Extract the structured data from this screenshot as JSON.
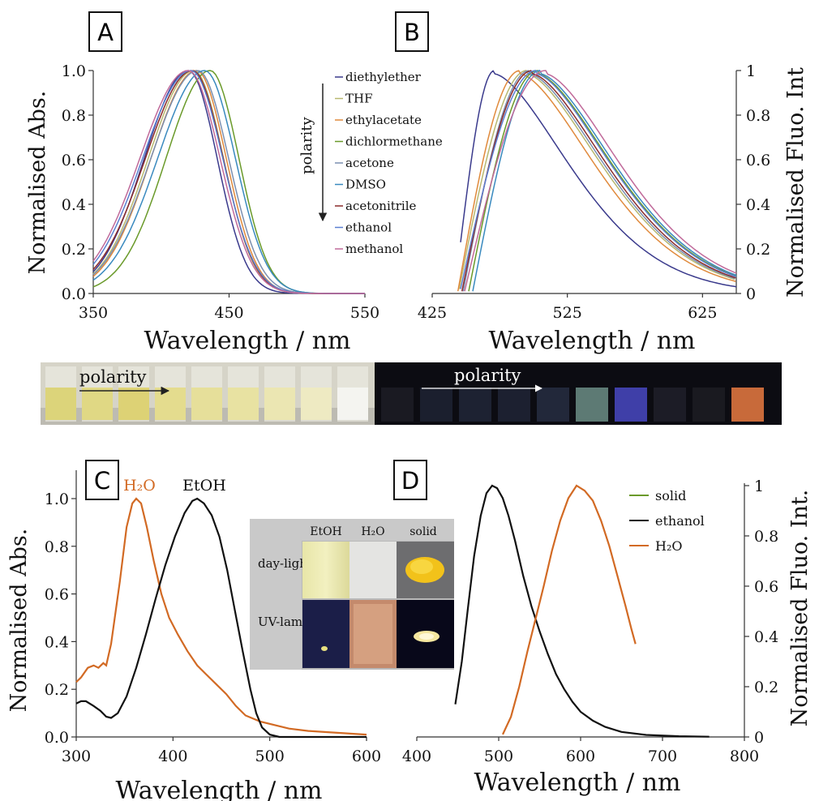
{
  "chart_data": [
    {
      "panel": "A",
      "type": "line",
      "xlabel": "Wavelength / nm",
      "ylabel": "Normalised Abs.",
      "xlim": [
        350,
        550
      ],
      "ylim": [
        0,
        1
      ],
      "xticks": [
        "350",
        "450",
        "550"
      ],
      "yticks": [
        "0.0",
        "0.2",
        "0.4",
        "0.6",
        "0.8",
        "1.0"
      ],
      "arrow_label": "polarity",
      "legend": "top-right",
      "series": [
        {
          "name": "diethylether",
          "color": "#3a3a8c",
          "peak": 420,
          "width": 30,
          "min_x": 350
        },
        {
          "name": "THF",
          "color": "#b8b870",
          "peak": 424,
          "width": 31,
          "min_x": 350
        },
        {
          "name": "ethylacetate",
          "color": "#e08a3c",
          "peak": 426,
          "width": 31,
          "min_x": 350
        },
        {
          "name": "dichlormethane",
          "color": "#6a9a2a",
          "peak": 436,
          "width": 30,
          "min_x": 350
        },
        {
          "name": "acetone",
          "color": "#7a8fb0",
          "peak": 427,
          "width": 32,
          "min_x": 350
        },
        {
          "name": "DMSO",
          "color": "#3a8abf",
          "peak": 432,
          "width": 32,
          "min_x": 350
        },
        {
          "name": "acetonitrile",
          "color": "#8b2b2b",
          "peak": 423,
          "width": 32,
          "min_x": 350
        },
        {
          "name": "ethanol",
          "color": "#5b7fd0",
          "peak": 422,
          "width": 33,
          "min_x": 350
        },
        {
          "name": "methanol",
          "color": "#c06a9a",
          "peak": 420,
          "width": 33,
          "min_x": 350
        }
      ]
    },
    {
      "panel": "B",
      "type": "line",
      "xlabel": "Wavelength / nm",
      "ylabel": "Normalised Fluo. Int",
      "xlim": [
        425,
        650
      ],
      "ylim": [
        0,
        1
      ],
      "xticks": [
        "425",
        "525",
        "625"
      ],
      "yticks": [
        "0",
        "0.2",
        "0.4",
        "0.6",
        "0.8",
        "1"
      ],
      "series": [
        {
          "name": "diethylether",
          "color": "#3a3a8c",
          "peak": 471,
          "start": 446,
          "start_y": 0.23
        },
        {
          "name": "THF",
          "color": "#b8b870",
          "peak": 495,
          "start": 445,
          "start_y": 0.02
        },
        {
          "name": "ethylacetate",
          "color": "#e08a3c",
          "peak": 490,
          "start": 444,
          "start_y": 0.01
        },
        {
          "name": "dichlormethane",
          "color": "#6a9a2a",
          "peak": 503,
          "start": 452,
          "start_y": 0.01
        },
        {
          "name": "acetone",
          "color": "#7a8fb0",
          "peak": 497,
          "start": 448,
          "start_y": 0.01
        },
        {
          "name": "DMSO",
          "color": "#3a8abf",
          "peak": 505,
          "start": 455,
          "start_y": 0.01
        },
        {
          "name": "acetonitrile",
          "color": "#8b2b2b",
          "peak": 499,
          "start": 447,
          "start_y": 0.01
        },
        {
          "name": "ethanol",
          "color": "#5b7fd0",
          "peak": 502,
          "start": 446,
          "start_y": 0.02
        },
        {
          "name": "methanol",
          "color": "#c06a9a",
          "peak": 509,
          "start": 449,
          "start_y": 0.01
        }
      ]
    },
    {
      "panel": "C",
      "type": "line",
      "xlabel": "Wavelength / nm",
      "ylabel": "Normalised Abs.",
      "xlim": [
        300,
        600
      ],
      "ylim": [
        0,
        1
      ],
      "xticks": [
        "300",
        "400",
        "500",
        "600"
      ],
      "yticks": [
        "0.0",
        "0.2",
        "0.4",
        "0.6",
        "0.8",
        "1.0"
      ],
      "annotations": [
        "H₂O",
        "EtOH"
      ],
      "series": [
        {
          "name": "H₂O",
          "color": "#d26a24",
          "points": [
            [
              300,
              0.23
            ],
            [
              305,
              0.25
            ],
            [
              312,
              0.29
            ],
            [
              318,
              0.3
            ],
            [
              323,
              0.29
            ],
            [
              328,
              0.31
            ],
            [
              331,
              0.3
            ],
            [
              336,
              0.39
            ],
            [
              345,
              0.65
            ],
            [
              352,
              0.88
            ],
            [
              358,
              0.98
            ],
            [
              362,
              1.0
            ],
            [
              367,
              0.98
            ],
            [
              373,
              0.88
            ],
            [
              380,
              0.74
            ],
            [
              388,
              0.6
            ],
            [
              396,
              0.5
            ],
            [
              405,
              0.43
            ],
            [
              415,
              0.36
            ],
            [
              425,
              0.3
            ],
            [
              435,
              0.26
            ],
            [
              445,
              0.22
            ],
            [
              455,
              0.18
            ],
            [
              465,
              0.13
            ],
            [
              475,
              0.09
            ],
            [
              490,
              0.065
            ],
            [
              505,
              0.05
            ],
            [
              520,
              0.035
            ],
            [
              540,
              0.025
            ],
            [
              560,
              0.02
            ],
            [
              580,
              0.015
            ],
            [
              600,
              0.01
            ]
          ]
        },
        {
          "name": "EtOH",
          "color": "#111111",
          "points": [
            [
              300,
              0.14
            ],
            [
              305,
              0.15
            ],
            [
              310,
              0.15
            ],
            [
              318,
              0.13
            ],
            [
              325,
              0.11
            ],
            [
              331,
              0.085
            ],
            [
              336,
              0.08
            ],
            [
              343,
              0.1
            ],
            [
              352,
              0.17
            ],
            [
              362,
              0.29
            ],
            [
              372,
              0.43
            ],
            [
              382,
              0.58
            ],
            [
              392,
              0.72
            ],
            [
              402,
              0.84
            ],
            [
              412,
              0.94
            ],
            [
              420,
              0.99
            ],
            [
              425,
              1.0
            ],
            [
              432,
              0.98
            ],
            [
              440,
              0.93
            ],
            [
              448,
              0.84
            ],
            [
              456,
              0.7
            ],
            [
              464,
              0.53
            ],
            [
              472,
              0.36
            ],
            [
              480,
              0.2
            ],
            [
              486,
              0.1
            ],
            [
              492,
              0.04
            ],
            [
              500,
              0.01
            ],
            [
              510,
              0.0
            ],
            [
              600,
              0.0
            ]
          ]
        }
      ],
      "inset": {
        "columns": [
          "EtOH",
          "H₂O",
          "solid"
        ],
        "rows": [
          "day-light",
          "UV-lamp"
        ]
      }
    },
    {
      "panel": "D",
      "type": "line",
      "xlabel": "Wavelength / nm",
      "ylabel": "Normalised Fluo. Int.",
      "xlim": [
        400,
        800
      ],
      "ylim": [
        0,
        1
      ],
      "xticks": [
        "400",
        "500",
        "600",
        "700",
        "800"
      ],
      "yticks": [
        "0",
        "0.2",
        "0.4",
        "0.6",
        "0.8",
        "1"
      ],
      "legend": "top-right",
      "series": [
        {
          "name": "solid",
          "color": "#6a9a2a",
          "points": []
        },
        {
          "name": "ethanol",
          "color": "#111111",
          "points": [
            [
              447,
              0.13
            ],
            [
              455,
              0.3
            ],
            [
              462,
              0.5
            ],
            [
              470,
              0.72
            ],
            [
              478,
              0.88
            ],
            [
              485,
              0.97
            ],
            [
              492,
              1.0
            ],
            [
              498,
              0.99
            ],
            [
              505,
              0.95
            ],
            [
              512,
              0.88
            ],
            [
              520,
              0.78
            ],
            [
              530,
              0.64
            ],
            [
              540,
              0.52
            ],
            [
              550,
              0.42
            ],
            [
              560,
              0.33
            ],
            [
              570,
              0.25
            ],
            [
              580,
              0.19
            ],
            [
              590,
              0.14
            ],
            [
              600,
              0.1
            ],
            [
              615,
              0.065
            ],
            [
              630,
              0.04
            ],
            [
              650,
              0.02
            ],
            [
              680,
              0.008
            ],
            [
              720,
              0.003
            ],
            [
              757,
              0.001
            ]
          ]
        },
        {
          "name": "H₂O",
          "color": "#d26a24",
          "points": [
            [
              505,
              0.01
            ],
            [
              515,
              0.08
            ],
            [
              525,
              0.2
            ],
            [
              535,
              0.34
            ],
            [
              545,
              0.47
            ],
            [
              555,
              0.6
            ],
            [
              565,
              0.74
            ],
            [
              575,
              0.86
            ],
            [
              585,
              0.95
            ],
            [
              595,
              1.0
            ],
            [
              605,
              0.98
            ],
            [
              615,
              0.94
            ],
            [
              625,
              0.86
            ],
            [
              635,
              0.76
            ],
            [
              645,
              0.64
            ],
            [
              655,
              0.52
            ],
            [
              662,
              0.43
            ],
            [
              667,
              0.37
            ]
          ]
        }
      ]
    }
  ],
  "panels": {
    "A": "A",
    "B": "B",
    "C": "C",
    "D": "D"
  },
  "photo_strip": {
    "left_label": "polarity",
    "right_label": "polarity"
  },
  "inset": {
    "col1": "EtOH",
    "col2": "H₂O",
    "col3": "solid",
    "row1": "day-light",
    "row2": "UV-lamp"
  }
}
